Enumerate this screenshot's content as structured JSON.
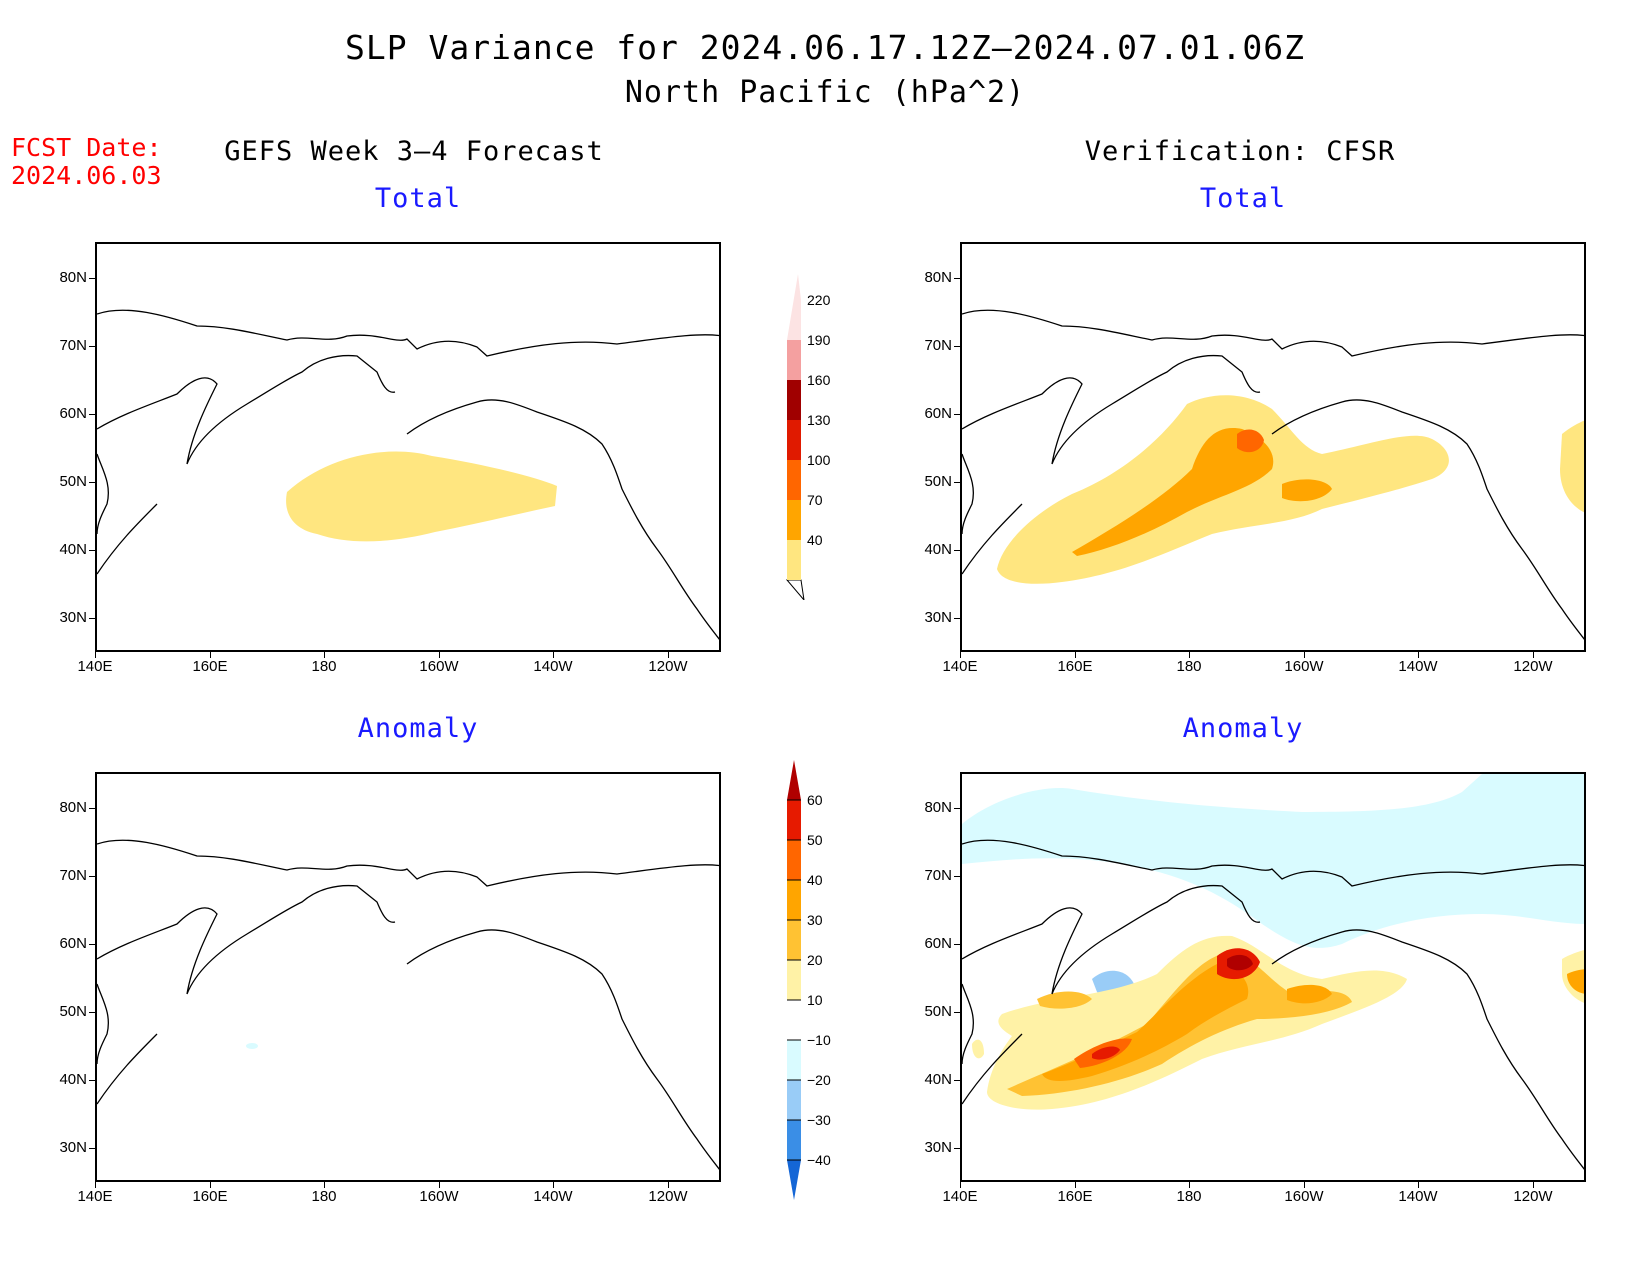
{
  "title": "SLP Variance for 2024.06.17.12Z–2024.07.01.06Z",
  "subtitle": "North Pacific (hPa^2)",
  "fcst_label": "FCST Date:",
  "fcst_date": "2024.06.03",
  "left_column_title": "GEFS Week 3–4 Forecast",
  "right_column_title": "Verification: CFSR",
  "panels": [
    {
      "name": "forecast-total",
      "subtitle": "Total"
    },
    {
      "name": "verification-total",
      "subtitle": "Total"
    },
    {
      "name": "forecast-anomaly",
      "subtitle": "Anomaly"
    },
    {
      "name": "verification-anomaly",
      "subtitle": "Anomaly"
    }
  ],
  "lat_labels": [
    "80N",
    "70N",
    "60N",
    "50N",
    "40N",
    "30N"
  ],
  "lon_labels": [
    "140E",
    "160E",
    "180",
    "160W",
    "140W",
    "120W"
  ],
  "total_colorbar": {
    "levels": [
      "40",
      "70",
      "100",
      "130",
      "160",
      "190",
      "220"
    ],
    "colors": [
      "#ffe680",
      "#ffa500",
      "#ff6600",
      "#e01a00",
      "#a00000",
      "#f4a0a0",
      "#fce3e3"
    ]
  },
  "anomaly_colorbar": {
    "levels": [
      "60",
      "50",
      "40",
      "30",
      "20",
      "10",
      "−10",
      "−20",
      "−30",
      "−40"
    ],
    "colors": [
      "#b00000",
      "#e61a00",
      "#ff6600",
      "#ffa500",
      "#ffc233",
      "#fff2a6",
      "#ffffff",
      "#d9fbff",
      "#99ccf7",
      "#3a8ee6",
      "#1466d6"
    ]
  }
}
